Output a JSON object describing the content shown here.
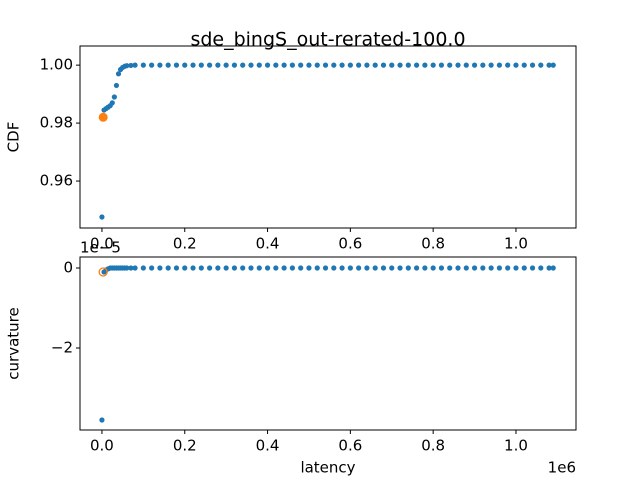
{
  "chart_data": [
    {
      "type": "scatter",
      "title": "sde_bingS_out-rerated-100.0",
      "y_label": "CDF",
      "xlim": [
        -0.053,
        1.145
      ],
      "ylim": [
        0.9438,
        1.0066
      ],
      "xticks": [
        {
          "value": 0,
          "label": "0.0"
        },
        0.2,
        0.4,
        0.6,
        0.8,
        {
          "value": 1,
          "label": "1.0"
        }
      ],
      "yticks": [
        {
          "value": 0.96,
          "label": "0.96"
        },
        {
          "value": 0.98,
          "label": "0.98"
        },
        {
          "value": 1,
          "label": "1.00"
        }
      ],
      "series": [
        {
          "color": "#1f77b4",
          "marker": "dot",
          "x": [
            0,
            0.005,
            0.01,
            0.015,
            0.02,
            0.025,
            0.03,
            0.035,
            0.04,
            0.045,
            0.05,
            0.055,
            0.06,
            0.07,
            0.08,
            0.1,
            0.12,
            0.14,
            0.16,
            0.18,
            0.2,
            0.22,
            0.24,
            0.26,
            0.28,
            0.3,
            0.32,
            0.34,
            0.36,
            0.38,
            0.4,
            0.42,
            0.44,
            0.46,
            0.48,
            0.5,
            0.52,
            0.54,
            0.56,
            0.58,
            0.6,
            0.62,
            0.64,
            0.66,
            0.68,
            0.7,
            0.72,
            0.74,
            0.76,
            0.78,
            0.8,
            0.82,
            0.84,
            0.86,
            0.88,
            0.9,
            0.92,
            0.94,
            0.96,
            0.98,
            1,
            1.02,
            1.04,
            1.06,
            1.08,
            1.09
          ],
          "values": [
            0.9476,
            0.9845,
            0.985,
            0.9855,
            0.986,
            0.987,
            0.989,
            0.993,
            0.997,
            0.9985,
            0.9992,
            0.9996,
            0.9998,
            0.9999,
            1,
            1,
            1,
            1,
            1,
            1,
            1,
            1,
            1,
            1,
            1,
            1,
            1,
            1,
            1,
            1,
            1,
            1,
            1,
            1,
            1,
            1,
            1,
            1,
            1,
            1,
            1,
            1,
            1,
            1,
            1,
            1,
            1,
            1,
            1,
            1,
            1,
            1,
            1,
            1,
            1,
            1,
            1,
            1,
            1,
            1,
            1,
            1,
            1,
            1,
            1,
            1
          ]
        },
        {
          "color": "#ff7f0e",
          "marker": "filled-circle",
          "x": [
            0.003
          ],
          "values": [
            0.982
          ]
        }
      ]
    },
    {
      "type": "scatter",
      "x_label": "latency",
      "y_label": "curvature",
      "x_offset_text": "1e6",
      "y_offset_text": "1e−5",
      "xlim": [
        -0.053,
        1.145
      ],
      "ylim": [
        -4.05,
        0.275
      ],
      "xticks": [
        {
          "value": 0,
          "label": "0.0"
        },
        0.2,
        0.4,
        0.6,
        0.8,
        {
          "value": 1,
          "label": "1.0"
        }
      ],
      "yticks": [
        {
          "value": -2,
          "label": "−2"
        },
        0
      ],
      "series": [
        {
          "color": "#1f77b4",
          "marker": "dot",
          "x": [
            0,
            0.005,
            0.01,
            0.015,
            0.02,
            0.025,
            0.03,
            0.035,
            0.04,
            0.045,
            0.05,
            0.055,
            0.06,
            0.07,
            0.08,
            0.1,
            0.12,
            0.14,
            0.16,
            0.18,
            0.2,
            0.22,
            0.24,
            0.26,
            0.28,
            0.3,
            0.32,
            0.34,
            0.36,
            0.38,
            0.4,
            0.42,
            0.44,
            0.46,
            0.48,
            0.5,
            0.52,
            0.54,
            0.56,
            0.58,
            0.6,
            0.62,
            0.64,
            0.66,
            0.68,
            0.7,
            0.72,
            0.74,
            0.76,
            0.78,
            0.8,
            0.82,
            0.84,
            0.86,
            0.88,
            0.9,
            0.92,
            0.94,
            0.96,
            0.98,
            1,
            1.02,
            1.04,
            1.06,
            1.08,
            1.09
          ],
          "values": [
            -3.8,
            -0.1,
            -0.05,
            -0.02,
            0,
            0,
            0,
            0,
            0,
            0,
            0,
            0,
            0,
            0,
            0,
            0,
            0,
            0,
            0,
            0,
            0,
            0,
            0,
            0,
            0,
            0,
            0,
            0,
            0,
            0,
            0,
            0,
            0,
            0,
            0,
            0,
            0,
            0,
            0,
            0,
            0,
            0,
            0,
            0,
            0,
            0,
            0,
            0,
            0,
            0,
            0,
            0,
            0,
            0,
            0,
            0,
            0,
            0,
            0,
            0,
            0,
            0,
            0,
            0,
            0,
            0
          ]
        },
        {
          "color": "#ff7f0e",
          "marker": "hollow-circle",
          "x": [
            0.003
          ],
          "values": [
            -0.1
          ]
        }
      ]
    }
  ]
}
